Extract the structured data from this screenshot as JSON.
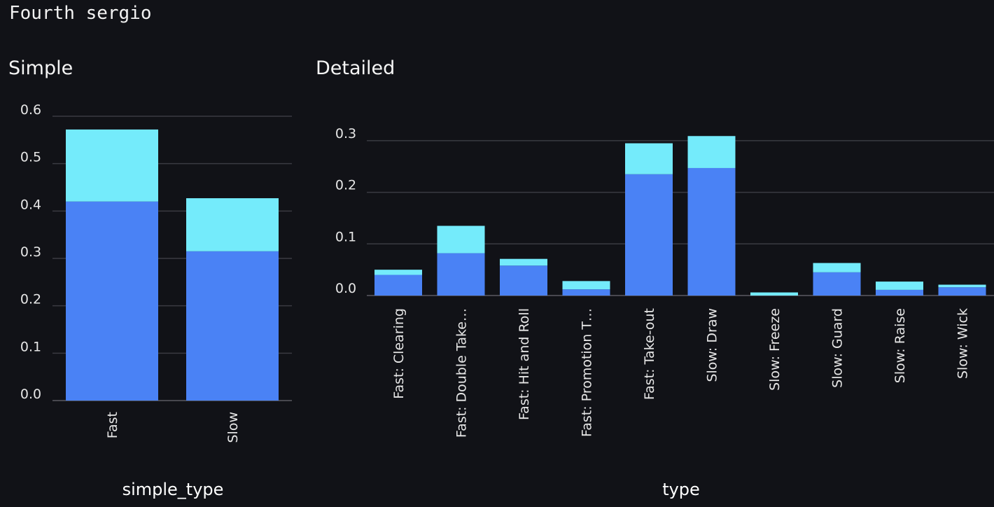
{
  "page": {
    "heading": "Fourth sergio"
  },
  "colors": {
    "background": "#111217",
    "lower_segment": "#4a82f5",
    "upper_segment": "#74ebfb"
  },
  "chart_data": [
    {
      "type": "bar",
      "stacked": true,
      "title": "Simple",
      "xlabel": "simple_type",
      "ylabel": "",
      "categories": [
        "Fast",
        "Slow"
      ],
      "series": [
        {
          "values": [
            0.42,
            0.315
          ]
        },
        {
          "values": [
            0.152,
            0.112
          ]
        }
      ],
      "yticks": [
        "0.0",
        "0.1",
        "0.2",
        "0.3",
        "0.4",
        "0.5",
        "0.6"
      ],
      "ylim": [
        0,
        0.6
      ],
      "grid": true
    },
    {
      "type": "bar",
      "stacked": true,
      "title": "Detailed",
      "xlabel": "type",
      "ylabel": "",
      "categories": [
        "Fast: Clearing",
        "Fast: Double Take…",
        "Fast: Hit and Roll",
        "Fast: Promotion T…",
        "Fast: Take-out",
        "Slow: Draw",
        "Slow: Freeze",
        "Slow: Guard",
        "Slow: Raise",
        "Slow: Wick"
      ],
      "series": [
        {
          "values": [
            0.04,
            0.082,
            0.058,
            0.012,
            0.235,
            0.247,
            0.0,
            0.045,
            0.011,
            0.016
          ]
        },
        {
          "values": [
            0.01,
            0.053,
            0.013,
            0.016,
            0.06,
            0.062,
            0.006,
            0.018,
            0.016,
            0.005
          ]
        }
      ],
      "yticks": [
        "0.0",
        "0.1",
        "0.2",
        "0.3"
      ],
      "ylim": [
        0,
        0.3
      ],
      "grid": true
    }
  ]
}
